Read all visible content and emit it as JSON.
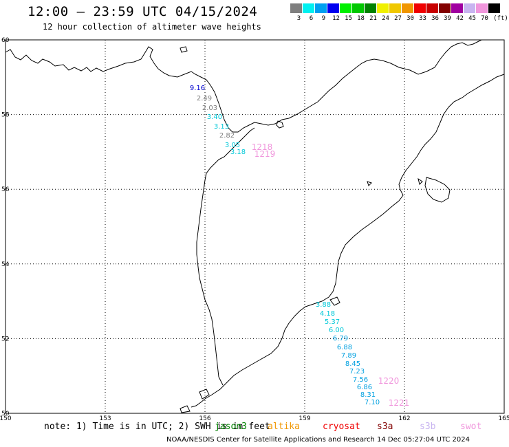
{
  "header": {
    "title": "12:00 – 23:59 UTC 04/15/2024",
    "subtitle": "12 hour collection of altimeter wave heights"
  },
  "legend": {
    "unit": "(ft)",
    "items": [
      {
        "label": "3",
        "color": "#7f7f7f"
      },
      {
        "label": "6",
        "color": "#00f0f0"
      },
      {
        "label": "9",
        "color": "#00a0f0"
      },
      {
        "label": "12",
        "color": "#0000f0"
      },
      {
        "label": "15",
        "color": "#00f000"
      },
      {
        "label": "18",
        "color": "#00c800"
      },
      {
        "label": "21",
        "color": "#008200"
      },
      {
        "label": "24",
        "color": "#f0f000"
      },
      {
        "label": "27",
        "color": "#f0c800"
      },
      {
        "label": "30",
        "color": "#f09600"
      },
      {
        "label": "33",
        "color": "#f00000"
      },
      {
        "label": "36",
        "color": "#c80000"
      },
      {
        "label": "39",
        "color": "#820000"
      },
      {
        "label": "42",
        "color": "#a000a0"
      },
      {
        "label": "45",
        "color": "#c8b4f0"
      },
      {
        "label": "70",
        "color": "#f096dc"
      },
      {
        "label": "",
        "color": "#000000"
      }
    ]
  },
  "map": {
    "lon_ticks": [
      "150",
      "153",
      "156",
      "159",
      "162",
      "165"
    ],
    "lat_ticks": [
      "60",
      "58",
      "56",
      "54",
      "52",
      "50"
    ],
    "lon_range": [
      150,
      165
    ],
    "lat_range": [
      50,
      60
    ]
  },
  "observations": [
    {
      "value": "9.16",
      "color": "#0000d0"
    },
    {
      "value": "2.49",
      "color": "#7f7f7f"
    },
    {
      "value": "2.03",
      "color": "#7f7f7f"
    },
    {
      "value": "3.40",
      "color": "#00c8d8"
    },
    {
      "value": "3.13",
      "color": "#00c8d8"
    },
    {
      "value": "2.82",
      "color": "#7f7f7f"
    },
    {
      "value": "3.05",
      "color": "#00c8d8"
    },
    {
      "value": "3.18",
      "color": "#00c8d8"
    },
    {
      "value": "3.88",
      "color": "#00c8d8"
    },
    {
      "value": "4.18",
      "color": "#00c8d8"
    },
    {
      "value": "5.37",
      "color": "#00c8d8"
    },
    {
      "value": "6.00",
      "color": "#00c8d8"
    },
    {
      "value": "6.79",
      "color": "#00a0e0"
    },
    {
      "value": "6.88",
      "color": "#00a0e0"
    },
    {
      "value": "7.89",
      "color": "#00a0e0"
    },
    {
      "value": "8.45",
      "color": "#00a0e0"
    },
    {
      "value": "7.23",
      "color": "#00a0e0"
    },
    {
      "value": "7.56",
      "color": "#00a0e0"
    },
    {
      "value": "6.86",
      "color": "#00a0e0"
    },
    {
      "value": "8.31",
      "color": "#00a0e0"
    },
    {
      "value": "7.10",
      "color": "#00a0e0"
    }
  ],
  "times": [
    {
      "value": "1218",
      "color": "#f096dc"
    },
    {
      "value": "1219",
      "color": "#f096dc"
    },
    {
      "value": "1220",
      "color": "#f096dc"
    },
    {
      "value": "1221",
      "color": "#f096dc"
    }
  ],
  "notes": {
    "note_text": "note: 1) Time is in UTC; 2) SWH is in feet",
    "satellites": [
      {
        "name": "jason3",
        "color": "#008200"
      },
      {
        "name": "altika",
        "color": "#f09600"
      },
      {
        "name": "cryosat",
        "color": "#f00000"
      },
      {
        "name": "s3a",
        "color": "#820000"
      },
      {
        "name": "s3b",
        "color": "#c8b4f0"
      },
      {
        "name": "swot",
        "color": "#f096dc"
      }
    ]
  },
  "footer": "NOAA/NESDIS Center for Satellite Applications and Research    14 Dec 05:27:04 UTC 2024"
}
